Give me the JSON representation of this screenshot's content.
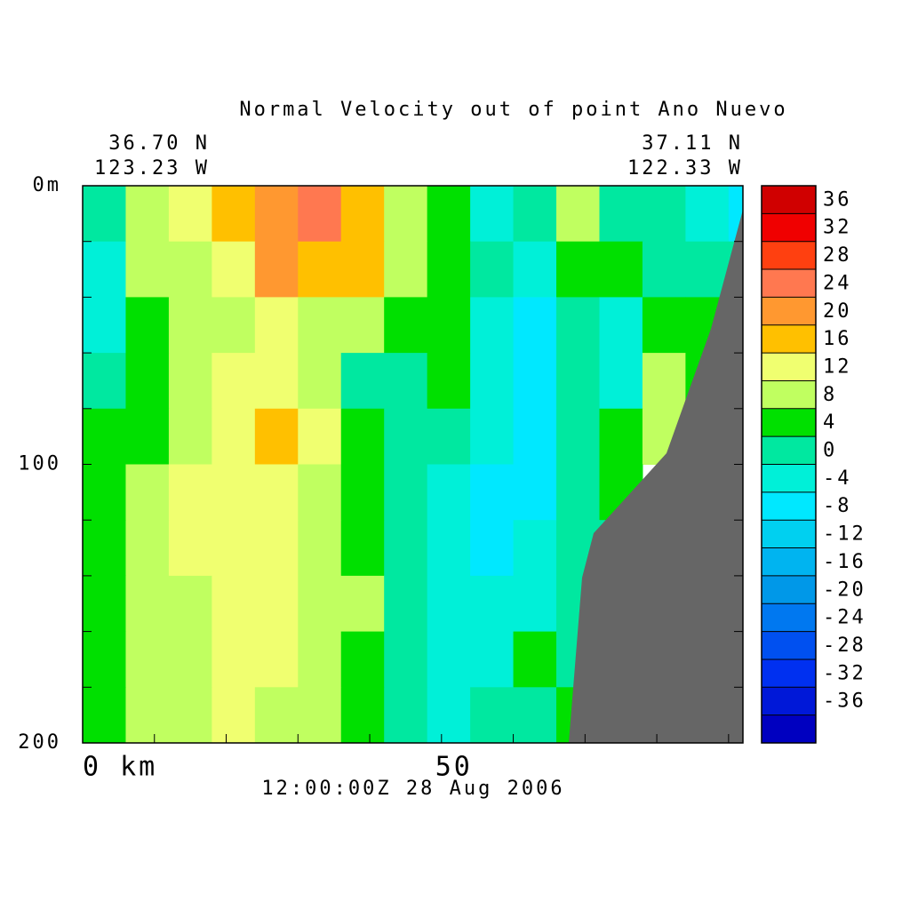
{
  "chart_data": {
    "type": "contour",
    "title": "Normal Velocity out of point Ano Nuevo",
    "left_lat": "36.70 N",
    "left_lon": "123.23 W",
    "right_lat": "37.11 N",
    "right_lon": "122.33 W",
    "time_label": "12:00:00Z  28 Aug 2006",
    "xlim": [
      0,
      92
    ],
    "xticks": [
      {
        "value": 0,
        "label": "0 km"
      },
      50
    ],
    "xticks_minor": [
      10,
      20,
      30,
      40,
      60,
      70,
      80,
      90
    ],
    "ylim": [
      0,
      200
    ],
    "yticks": [
      {
        "value": 0,
        "label": "0m"
      },
      100,
      200
    ],
    "yticks_minor": [
      20,
      40,
      60,
      80,
      120,
      140,
      160,
      180
    ],
    "x_edges": [
      0,
      6,
      12,
      18,
      24,
      30,
      36,
      42,
      48,
      54,
      60,
      66,
      72,
      78,
      84,
      90,
      92
    ],
    "depth_edges": [
      0,
      20,
      40,
      60,
      80,
      100,
      120,
      140,
      160,
      180,
      200
    ],
    "values": [
      [
        2,
        10,
        14,
        18,
        22,
        26,
        16,
        10,
        4,
        -4,
        2,
        10,
        2,
        2,
        -2,
        -6
      ],
      [
        -2,
        8,
        10,
        14,
        20,
        16,
        16,
        10,
        6,
        2,
        -4,
        6,
        6,
        2,
        2,
        2
      ],
      [
        -2,
        6,
        8,
        10,
        12,
        10,
        10,
        6,
        6,
        -2,
        -6,
        2,
        -2,
        6,
        6,
        null
      ],
      [
        2,
        6,
        10,
        14,
        14,
        10,
        2,
        2,
        6,
        -2,
        -6,
        2,
        -2,
        10,
        6,
        null
      ],
      [
        6,
        6,
        10,
        14,
        18,
        14,
        6,
        2,
        2,
        -4,
        -6,
        2,
        6,
        10,
        null,
        null
      ],
      [
        6,
        10,
        14,
        14,
        14,
        10,
        6,
        2,
        -2,
        -6,
        -6,
        2,
        6,
        null,
        null,
        null
      ],
      [
        6,
        10,
        14,
        14,
        14,
        10,
        6,
        2,
        -2,
        -6,
        -4,
        2,
        2,
        null,
        null,
        null
      ],
      [
        6,
        10,
        10,
        14,
        14,
        10,
        10,
        2,
        -2,
        -2,
        -2,
        2,
        null,
        null,
        null,
        null
      ],
      [
        6,
        10,
        10,
        14,
        14,
        10,
        6,
        2,
        -2,
        -2,
        6,
        2,
        null,
        null,
        null,
        null
      ],
      [
        6,
        10,
        10,
        14,
        10,
        10,
        6,
        2,
        -2,
        2,
        2,
        6,
        null,
        null,
        null,
        null
      ]
    ],
    "colorbar": {
      "levels": [
        -40,
        -36,
        -32,
        -28,
        -24,
        -20,
        -16,
        -12,
        -8,
        -4,
        0,
        4,
        8,
        12,
        16,
        20,
        24,
        28,
        32,
        36,
        40
      ],
      "colors": [
        "#0000c0",
        "#0018d8",
        "#0030f0",
        "#0050f0",
        "#0078f0",
        "#0098e8",
        "#00b4f0",
        "#00d0f0",
        "#00e8ff",
        "#00f0d8",
        "#00e8a0",
        "#00e000",
        "#c0ff60",
        "#f0ff70",
        "#ffc000",
        "#ff9830",
        "#ff7850",
        "#ff4010",
        "#f00000",
        "#d00000",
        "#a00000"
      ],
      "ticks": [
        -36,
        -32,
        -28,
        -24,
        -20,
        -16,
        -12,
        -8,
        -4,
        0,
        4,
        8,
        12,
        16,
        20,
        24,
        28,
        32,
        36
      ]
    }
  }
}
